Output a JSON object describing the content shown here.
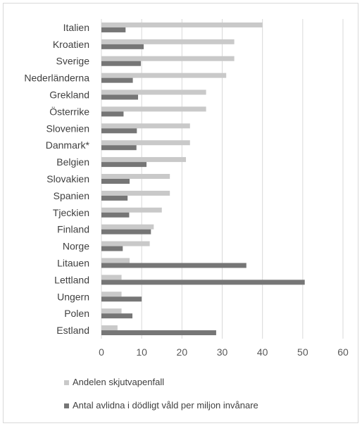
{
  "chart_data": {
    "type": "bar",
    "orientation": "horizontal",
    "categories": [
      "Italien",
      "Kroatien",
      "Sverige",
      "Nederländerna",
      "Grekland",
      "Österrike",
      "Slovenien",
      "Danmark*",
      "Belgien",
      "Slovakien",
      "Spanien",
      "Tjeckien",
      "Finland",
      "Norge",
      "Litauen",
      "Lettland",
      "Ungern",
      "Polen",
      "Estland"
    ],
    "series": [
      {
        "name": "Andelen skjutvapenfall",
        "color": "#c9c9c9",
        "values": [
          40,
          33,
          33,
          31,
          26,
          26,
          22,
          22,
          21,
          17,
          17,
          15,
          13,
          12,
          7,
          5,
          5,
          5,
          4
        ]
      },
      {
        "name": "Antal avlidna i dödligt våld per miljon invånare",
        "color": "#767676",
        "values": [
          6,
          10.5,
          9.8,
          7.8,
          9.1,
          5.5,
          8.8,
          8.7,
          11.2,
          7,
          6.5,
          6.9,
          12.3,
          5.3,
          36,
          50.5,
          10,
          7.7,
          28.5
        ]
      }
    ],
    "xlim": [
      0,
      60
    ],
    "xticks": [
      "0",
      "10",
      "20",
      "30",
      "40",
      "50",
      "60"
    ],
    "grid": true,
    "legend_position": "bottom",
    "title": "",
    "xlabel": "",
    "ylabel": ""
  }
}
